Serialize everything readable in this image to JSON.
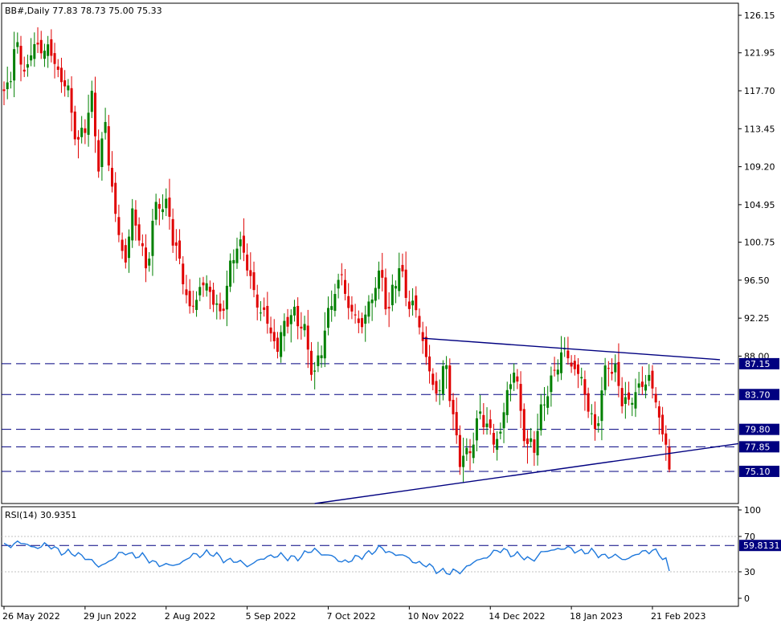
{
  "chart_data": [
    {
      "type": "candlestick",
      "symbol": "BB#",
      "timeframe": "Daily",
      "title": "BB#,Daily",
      "ohlc_label": "77.83 78.73 75.00 75.33",
      "ylim": [
        71.5,
        127.5
      ],
      "y_ticks": [
        "126.15",
        "121.95",
        "117.70",
        "113.45",
        "109.20",
        "104.95",
        "100.75",
        "96.50",
        "92.25",
        "88.00"
      ],
      "x_tick_labels": [
        "26 May 2022",
        "29 Jun 2022",
        "2 Aug 2022",
        "5 Sep 2022",
        "7 Oct 2022",
        "10 Nov 2022",
        "14 Dec 2022",
        "18 Jan 2023",
        "21 Feb 2023"
      ],
      "levels": [
        {
          "label": "87.15",
          "value": 87.15
        },
        {
          "label": "83.70",
          "value": 83.7
        },
        {
          "label": "79.80",
          "value": 79.8
        },
        {
          "label": "77.85",
          "value": 77.85
        },
        {
          "label": "75.10",
          "value": 75.1
        }
      ],
      "colors": {
        "up": "#008000",
        "down": "#e00000",
        "trendline": "#000080",
        "level": "#000080"
      },
      "anchors": [
        [
          0,
          117
        ],
        [
          3,
          122
        ],
        [
          7,
          120
        ],
        [
          9,
          124
        ],
        [
          11,
          121
        ],
        [
          13,
          123
        ],
        [
          16,
          120
        ],
        [
          19,
          117
        ],
        [
          22,
          112
        ],
        [
          24,
          114
        ],
        [
          26,
          116
        ],
        [
          28,
          110
        ],
        [
          30,
          114
        ],
        [
          31,
          110
        ],
        [
          33,
          103
        ],
        [
          36,
          99
        ],
        [
          38,
          104
        ],
        [
          40,
          101
        ],
        [
          42,
          98
        ],
        [
          44,
          103
        ],
        [
          46,
          105
        ],
        [
          49,
          104
        ],
        [
          52,
          98
        ],
        [
          55,
          93
        ],
        [
          58,
          96
        ],
        [
          61,
          95
        ],
        [
          64,
          93
        ],
        [
          67,
          97
        ],
        [
          69,
          101
        ],
        [
          72,
          99
        ],
        [
          74,
          94
        ],
        [
          77,
          93
        ],
        [
          79,
          91
        ],
        [
          81,
          88
        ],
        [
          83,
          92
        ],
        [
          86,
          93
        ],
        [
          88,
          91
        ],
        [
          90,
          89
        ],
        [
          92,
          86
        ],
        [
          94,
          89
        ],
        [
          96,
          92
        ],
        [
          98,
          96
        ],
        [
          100,
          97
        ],
        [
          102,
          93
        ],
        [
          105,
          92
        ],
        [
          108,
          93
        ],
        [
          110,
          96
        ],
        [
          112,
          97
        ],
        [
          114,
          93
        ],
        [
          117,
          98
        ],
        [
          119,
          95
        ],
        [
          121,
          94
        ],
        [
          123,
          91
        ],
        [
          125,
          88
        ],
        [
          127,
          85
        ],
        [
          129,
          84
        ],
        [
          131,
          87
        ],
        [
          133,
          81
        ],
        [
          135,
          77
        ],
        [
          137,
          76
        ],
        [
          139,
          79
        ],
        [
          141,
          82
        ],
        [
          143,
          80
        ],
        [
          145,
          78
        ],
        [
          147,
          80
        ],
        [
          149,
          84
        ],
        [
          151,
          86
        ],
        [
          153,
          82
        ],
        [
          155,
          78
        ],
        [
          157,
          78
        ],
        [
          159,
          81
        ],
        [
          161,
          85
        ],
        [
          163,
          86
        ],
        [
          165,
          88
        ],
        [
          167,
          88
        ],
        [
          169,
          87
        ],
        [
          171,
          85
        ],
        [
          173,
          82
        ],
        [
          175,
          80
        ],
        [
          177,
          84
        ],
        [
          179,
          87
        ],
        [
          181,
          86
        ],
        [
          183,
          84
        ],
        [
          185,
          82
        ],
        [
          187,
          84
        ],
        [
          189,
          85
        ],
        [
          191,
          86
        ],
        [
          193,
          82
        ],
        [
          195,
          80
        ],
        [
          196,
          78
        ],
        [
          197,
          75.3
        ]
      ]
    },
    {
      "type": "line",
      "indicator": "RSI(14)",
      "title": "RSI(14) 30.9351",
      "ylim": [
        0,
        100
      ],
      "y_ticks": [
        "100",
        "70",
        "30",
        "0"
      ],
      "levels": [
        {
          "label": "59.8131",
          "value": 59.8131
        }
      ],
      "guide_levels": [
        70,
        30
      ],
      "line_color": "#1e78dc",
      "anchors": [
        [
          0,
          58
        ],
        [
          4,
          64
        ],
        [
          8,
          58
        ],
        [
          12,
          60
        ],
        [
          16,
          55
        ],
        [
          20,
          50
        ],
        [
          24,
          48
        ],
        [
          28,
          35
        ],
        [
          32,
          45
        ],
        [
          36,
          52
        ],
        [
          40,
          48
        ],
        [
          44,
          42
        ],
        [
          48,
          36
        ],
        [
          52,
          40
        ],
        [
          56,
          48
        ],
        [
          60,
          52
        ],
        [
          64,
          46
        ],
        [
          68,
          42
        ],
        [
          72,
          38
        ],
        [
          76,
          43
        ],
        [
          80,
          50
        ],
        [
          84,
          45
        ],
        [
          88,
          48
        ],
        [
          92,
          55
        ],
        [
          96,
          48
        ],
        [
          100,
          42
        ],
        [
          104,
          44
        ],
        [
          108,
          52
        ],
        [
          112,
          56
        ],
        [
          116,
          50
        ],
        [
          120,
          45
        ],
        [
          124,
          38
        ],
        [
          128,
          33
        ],
        [
          132,
          28
        ],
        [
          136,
          33
        ],
        [
          140,
          42
        ],
        [
          144,
          50
        ],
        [
          148,
          55
        ],
        [
          152,
          48
        ],
        [
          156,
          44
        ],
        [
          160,
          52
        ],
        [
          164,
          57
        ],
        [
          168,
          55
        ],
        [
          172,
          53
        ],
        [
          176,
          50
        ],
        [
          180,
          47
        ],
        [
          184,
          45
        ],
        [
          188,
          50
        ],
        [
          192,
          56
        ],
        [
          196,
          42
        ],
        [
          197,
          30.9351
        ]
      ]
    }
  ]
}
